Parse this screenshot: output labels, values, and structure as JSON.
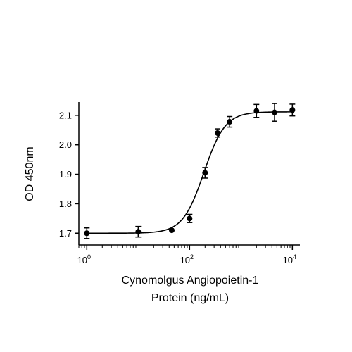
{
  "chart_data": {
    "type": "scatter",
    "xlabel_lines": [
      "Cynomolgus Angiopoietin-1",
      "Protein (ng/mL)"
    ],
    "ylabel": "OD 450nm",
    "x_scale": "log10",
    "xlim": [
      0.7,
      14000
    ],
    "ylim": [
      1.66,
      2.145
    ],
    "x_ticks": [
      {
        "value": 1,
        "base": "10",
        "exp": "0"
      },
      {
        "value": 100,
        "base": "10",
        "exp": "2"
      },
      {
        "value": 10000,
        "base": "10",
        "exp": "4"
      }
    ],
    "y_ticks": [
      {
        "value": 1.7,
        "label": "1.7"
      },
      {
        "value": 1.8,
        "label": "1.8"
      },
      {
        "value": 1.9,
        "label": "1.9"
      },
      {
        "value": 2.0,
        "label": "2.0"
      },
      {
        "value": 2.1,
        "label": "2.1"
      }
    ],
    "grid": false,
    "legend": "none",
    "series": [
      {
        "points": [
          {
            "x": 1,
            "y": 1.7,
            "err": 0.018
          },
          {
            "x": 10,
            "y": 1.705,
            "err": 0.018
          },
          {
            "x": 45,
            "y": 1.71,
            "err": 0.0
          },
          {
            "x": 100,
            "y": 1.75,
            "err": 0.014
          },
          {
            "x": 200,
            "y": 1.905,
            "err": 0.018
          },
          {
            "x": 350,
            "y": 2.04,
            "err": 0.014
          },
          {
            "x": 600,
            "y": 2.078,
            "err": 0.018
          },
          {
            "x": 2000,
            "y": 2.115,
            "err": 0.022
          },
          {
            "x": 4500,
            "y": 2.11,
            "err": 0.03
          },
          {
            "x": 10000,
            "y": 2.118,
            "err": 0.02
          }
        ]
      }
    ],
    "fit": {
      "bottom": 1.7,
      "top": 2.112,
      "ec50": 190,
      "hill": 2.1
    },
    "colors": {
      "marker": "#000000",
      "line": "#000000"
    }
  }
}
